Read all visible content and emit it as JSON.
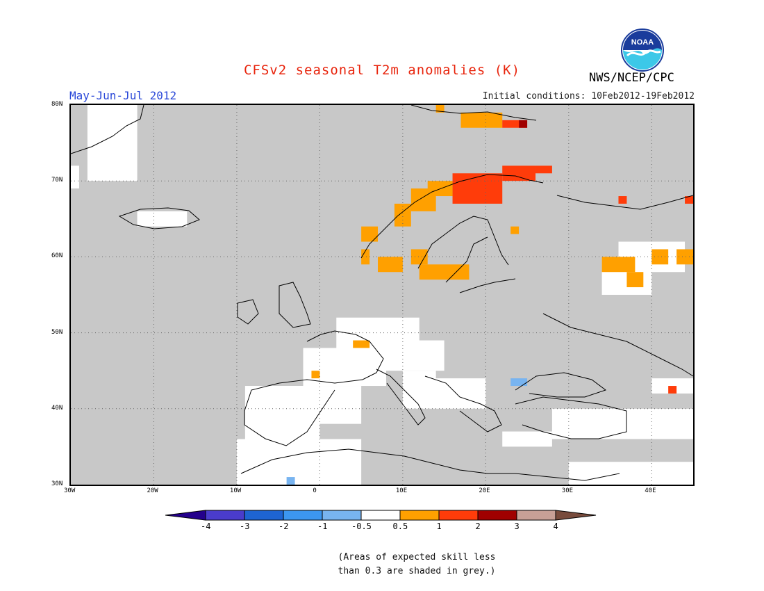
{
  "title": "CFSv2 seasonal T2m anomalies (K)",
  "period": "May-Jun-Jul 2012",
  "initial_conditions": "Initial conditions: 10Feb2012-19Feb2012",
  "agency": "NWS/NCEP/CPC",
  "logo_text": "NOAA",
  "map": {
    "region": "Europe",
    "lon_range": [
      -30,
      45
    ],
    "lat_range": [
      30,
      80
    ],
    "lon_ticks": [
      "30W",
      "20W",
      "10W",
      "0",
      "10E",
      "20E",
      "30E",
      "40E"
    ],
    "lat_ticks": [
      "80N",
      "70N",
      "60N",
      "50N",
      "40N",
      "30N"
    ],
    "colors": {
      "grey_low_skill": "#c8c8c8",
      "neutral": "#ffffff",
      "warm_0_5_1": "#ffa000",
      "warm_1_2": "#ff3c0a",
      "warm_2_3": "#a00000",
      "cool_-1_-0_5": "#78b4f0"
    }
  },
  "colorbar": {
    "labels": [
      "-4",
      "-3",
      "-2",
      "-1",
      "-0.5",
      "0.5",
      "1",
      "2",
      "3",
      "4"
    ],
    "colors": [
      "#24008c",
      "#4a3ccc",
      "#1e64d2",
      "#3c96f0",
      "#78b4f0",
      "#ffffff",
      "#ffa000",
      "#ff3c0a",
      "#a00000",
      "#c8a096",
      "#784b3c"
    ]
  },
  "note_line1": "(Areas of expected skill less",
  "note_line2": "than 0.3 are shaded in grey.)"
}
